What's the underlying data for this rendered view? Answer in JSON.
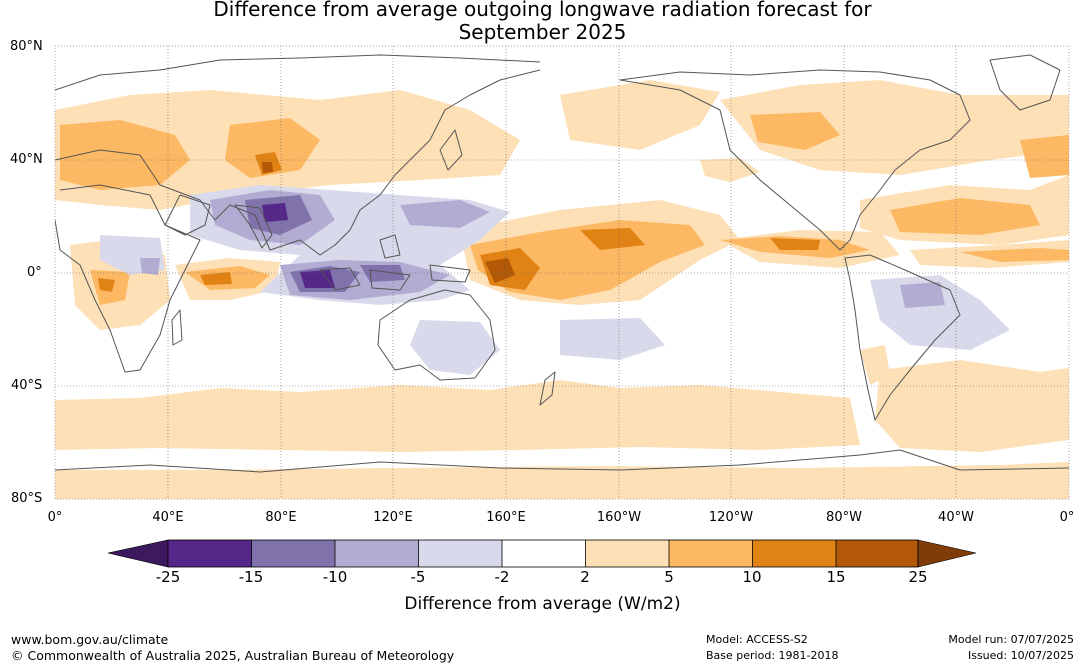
{
  "title_line1": "Difference from average outgoing longwave radiation forecast for",
  "title_line2": "September 2025",
  "lat_labels": [
    "80°N",
    "40°N",
    "0°",
    "40°S",
    "80°S"
  ],
  "lon_labels": [
    "0°",
    "40°E",
    "80°E",
    "120°E",
    "160°E",
    "160°W",
    "120°W",
    "80°W",
    "40°W",
    "0°"
  ],
  "legend": {
    "title": "Difference from average (W/m2)",
    "ticks": [
      "-25",
      "-15",
      "-10",
      "-5",
      "-2",
      "2",
      "5",
      "10",
      "15",
      "25"
    ],
    "colors": [
      "#3d1a5e",
      "#542788",
      "#8073ac",
      "#b2abd2",
      "#d8daeb",
      "#ffffff",
      "#fee0b6",
      "#fdb863",
      "#e08214",
      "#b35806",
      "#7f3b08"
    ]
  },
  "footer": {
    "url": "www.bom.gov.au/climate",
    "copyright": "© Commonwealth of Australia 2025, Australian Bureau of Meteorology",
    "model": "Model: ACCESS-S2",
    "base_period": "Base period: 1981-2018",
    "model_run": "Model run: 07/07/2025",
    "issued": "Issued: 10/07/2025"
  }
}
